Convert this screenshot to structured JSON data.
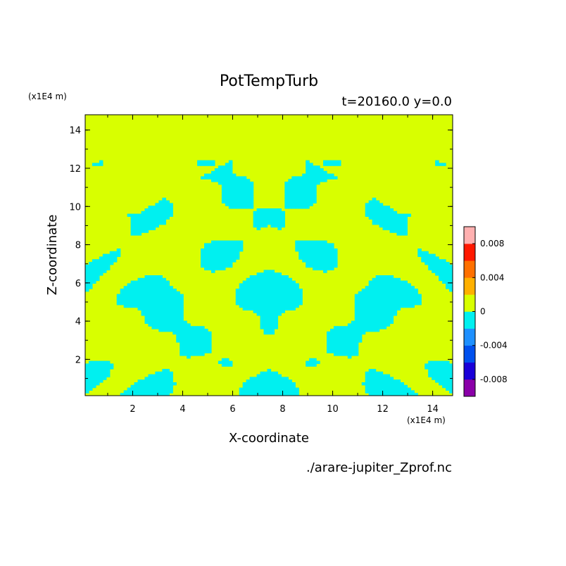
{
  "chart_data": {
    "type": "heatmap",
    "title": "PotTempTurb",
    "subtitle": "t=20160.0 y=0.0",
    "xlabel": "X-coordinate",
    "ylabel": "Z-coordinate",
    "x_unit": "(x1E4 m)",
    "y_unit": "(x1E4 m)",
    "source": "./arare-jupiter_Zprof.nc",
    "xlim": [
      0.1,
      14.8
    ],
    "ylim": [
      0.1,
      14.8
    ],
    "x_ticks": [
      2,
      4,
      6,
      8,
      10,
      12,
      14
    ],
    "y_ticks": [
      2,
      4,
      6,
      8,
      10,
      12,
      14
    ],
    "colorbar": {
      "levels": [
        -0.01,
        -0.008,
        -0.006,
        -0.004,
        -0.002,
        0,
        0.002,
        0.004,
        0.006,
        0.008,
        0.01
      ],
      "colors": [
        "#8a00a8",
        "#1a00d8",
        "#0050ee",
        "#1e90ff",
        "#00f0f0",
        "#d8ff00",
        "#ffb000",
        "#ff7000",
        "#ff1800",
        "#ffb0b0"
      ],
      "tick_labels": [
        "0.008",
        "0.004",
        "0",
        "-0.004",
        "-0.008"
      ],
      "tick_values": [
        0.008,
        0.004,
        0,
        -0.004,
        -0.008
      ]
    },
    "field_colors": {
      "positive": "#d8ff00",
      "negative": "#00f0f0"
    },
    "grid": false
  }
}
